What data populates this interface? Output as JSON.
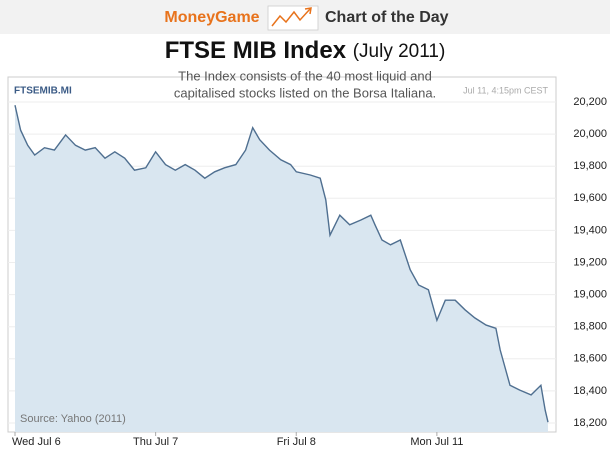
{
  "header": {
    "brand": "MoneyGame",
    "label": "Chart of the Day"
  },
  "chart_data": {
    "type": "area",
    "title": "FTSE MIB Index",
    "title_note": "(July 2011)",
    "subtitle": [
      "The Index consists of the 40 most liquid and",
      "capitalised stocks listed on the Borsa Italiana."
    ],
    "ticker": "FTSEMIB.MI",
    "timestamp": "Jul 11, 4:15pm CEST",
    "source": "Source: Yahoo (2011)",
    "color": "#4f6f90",
    "fill": "#d9e6f0",
    "x": [
      0,
      0.04,
      0.09,
      0.14,
      0.21,
      0.28,
      0.36,
      0.43,
      0.5,
      0.57,
      0.64,
      0.71,
      0.78,
      0.85,
      0.93,
      1.0,
      1.07,
      1.14,
      1.21,
      1.28,
      1.35,
      1.42,
      1.49,
      1.57,
      1.64,
      1.69,
      1.74,
      1.81,
      1.89,
      1.96,
      2.0,
      2.1,
      2.17,
      2.21,
      2.24,
      2.31,
      2.38,
      2.46,
      2.53,
      2.56,
      2.61,
      2.67,
      2.74,
      2.81,
      2.87,
      2.94,
      3.0,
      3.06,
      3.13,
      3.2,
      3.27,
      3.35,
      3.42,
      3.45,
      3.52,
      3.59,
      3.67,
      3.74,
      3.77,
      3.79
    ],
    "values": [
      20180,
      20025,
      19930,
      19870,
      19915,
      19900,
      19995,
      19930,
      19900,
      19915,
      19850,
      19890,
      19850,
      19775,
      19790,
      19890,
      19810,
      19775,
      19810,
      19775,
      19725,
      19765,
      19790,
      19810,
      19900,
      20040,
      19965,
      19900,
      19840,
      19810,
      19765,
      19745,
      19725,
      19590,
      19370,
      19495,
      19435,
      19465,
      19495,
      19435,
      19340,
      19310,
      19340,
      19155,
      19060,
      19030,
      18840,
      18965,
      18965,
      18905,
      18855,
      18810,
      18790,
      18655,
      18435,
      18405,
      18375,
      18435,
      18280,
      18205
    ],
    "xlim": [
      0,
      3.84
    ],
    "xticks": [
      {
        "value": 0,
        "label": "Wed Jul 6"
      },
      {
        "value": 1,
        "label": "Thu Jul 7"
      },
      {
        "value": 2,
        "label": "Fri Jul 8"
      },
      {
        "value": 3,
        "label": "Mon Jul 11"
      }
    ],
    "ylim": [
      18160,
      20240
    ],
    "yticks": [
      {
        "value": 18200,
        "label": "18,200"
      },
      {
        "value": 18400,
        "label": "18,400"
      },
      {
        "value": 18600,
        "label": "18,600"
      },
      {
        "value": 18800,
        "label": "18,800"
      },
      {
        "value": 19000,
        "label": "19,000"
      },
      {
        "value": 19200,
        "label": "19,200"
      },
      {
        "value": 19400,
        "label": "19,400"
      },
      {
        "value": 19600,
        "label": "19,600"
      },
      {
        "value": 19800,
        "label": "19,800"
      },
      {
        "value": 20000,
        "label": "20,000"
      },
      {
        "value": 20200,
        "label": "20,200"
      }
    ]
  }
}
